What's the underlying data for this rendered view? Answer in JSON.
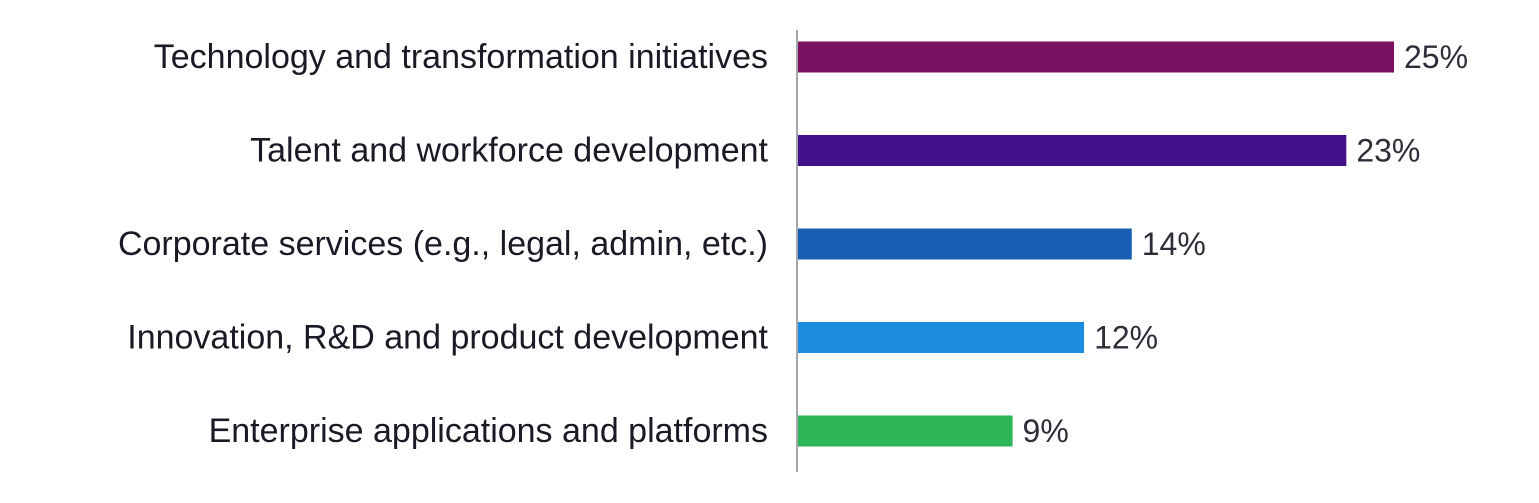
{
  "chart_data": {
    "type": "bar",
    "orientation": "horizontal",
    "title": "",
    "xlabel": "",
    "ylabel": "",
    "categories": [
      "Technology and transformation initiatives",
      "Talent and workforce development",
      "Corporate services (e.g., legal, admin, etc.)",
      "Innovation, R&D and product development",
      "Enterprise applications and platforms"
    ],
    "values": [
      25,
      23,
      14,
      12,
      9
    ],
    "value_labels": [
      "25%",
      "23%",
      "14%",
      "12%",
      "9%"
    ],
    "colors": [
      "#7a1160",
      "#43128a",
      "#175fb5",
      "#1d8ce0",
      "#2db558"
    ],
    "unit": "%",
    "xlim": [
      0,
      25
    ],
    "grid": false,
    "legend": "none"
  }
}
